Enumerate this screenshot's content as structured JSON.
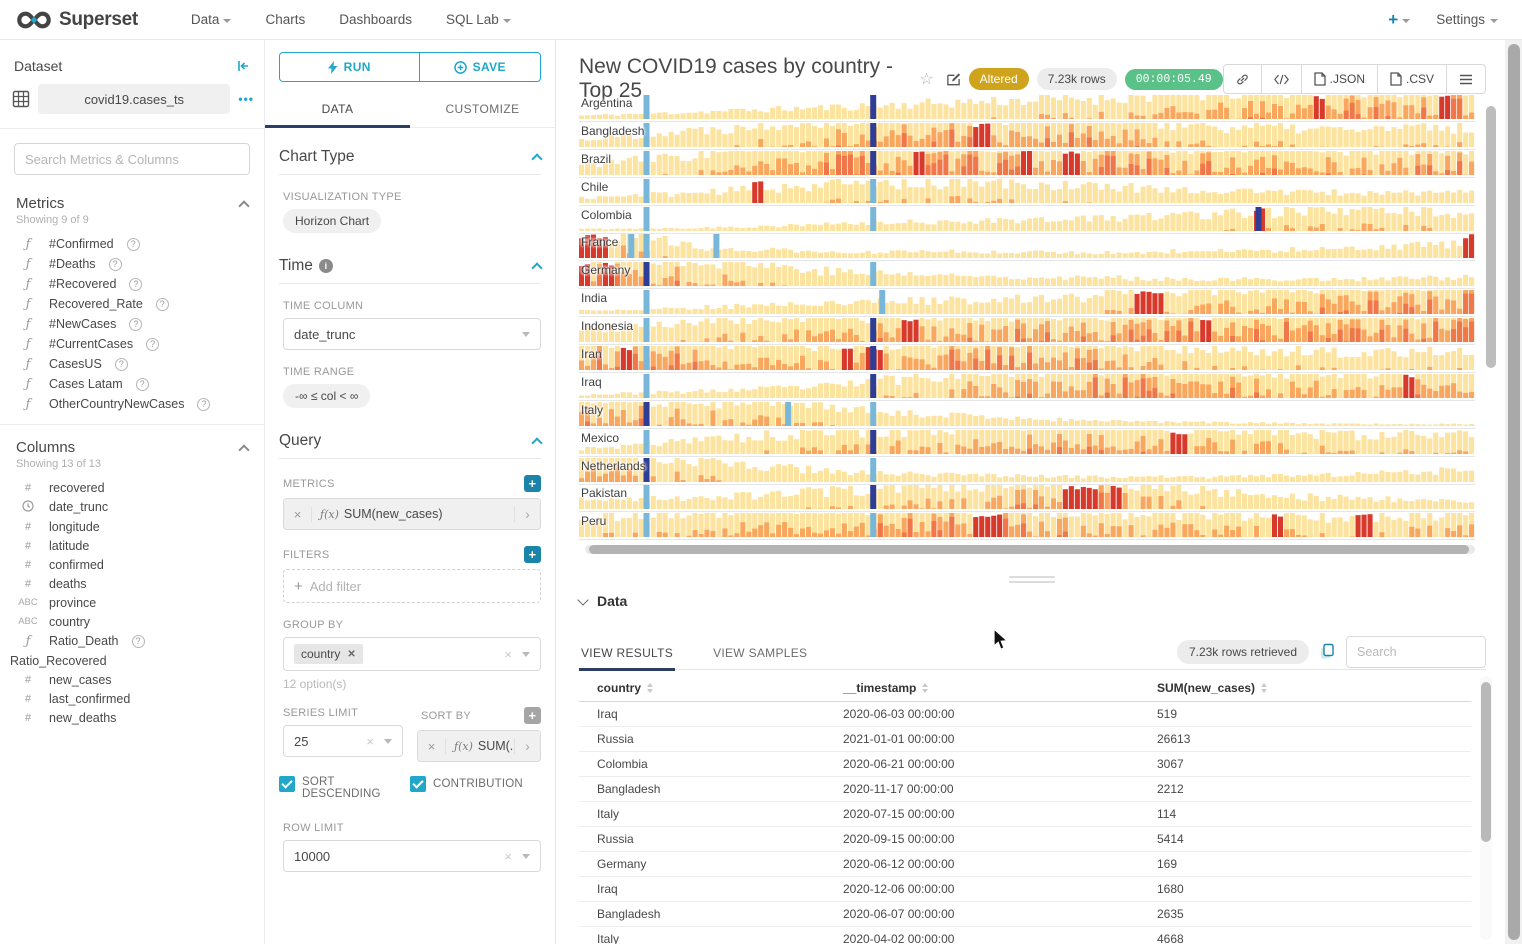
{
  "colors": {
    "accent_teal": "#20a7c9",
    "dark_teal": "#1a85a8",
    "tab_navy": "#2c3e63",
    "altered_gold": "#cfa31b",
    "timer_green": "#5ac189",
    "hz_pale": "#fde3a0",
    "hz_orange": "#f9a75e",
    "hz_deep": "#f0774a",
    "hz_red": "#d7392b",
    "hz_lightblue": "#79b7da",
    "hz_navy": "#2e3d95"
  },
  "navbar": {
    "brand": "Superset",
    "items": [
      {
        "label": "Data",
        "caret": true
      },
      {
        "label": "Charts",
        "caret": false
      },
      {
        "label": "Dashboards",
        "caret": false
      },
      {
        "label": "SQL Lab",
        "caret": true
      }
    ],
    "plus_label": "+",
    "settings_label": "Settings"
  },
  "dataset": {
    "title": "Dataset",
    "name": "covid19.cases_ts",
    "menu_dots": "•••",
    "search_placeholder": "Search Metrics & Columns",
    "metrics_title": "Metrics",
    "metrics_count": "Showing 9 of 9",
    "metrics": [
      {
        "label": "#Confirmed"
      },
      {
        "label": "#Deaths"
      },
      {
        "label": "#Recovered"
      },
      {
        "label": "Recovered_Rate"
      },
      {
        "label": "#NewCases"
      },
      {
        "label": "#CurrentCases"
      },
      {
        "label": "CasesUS"
      },
      {
        "label": "Cases Latam"
      },
      {
        "label": "OtherCountryNewCases"
      }
    ],
    "columns_title": "Columns",
    "columns_count": "Showing 13 of 13",
    "columns": [
      {
        "type": "num",
        "label": "recovered"
      },
      {
        "type": "time",
        "label": "date_trunc"
      },
      {
        "type": "num",
        "label": "longitude"
      },
      {
        "type": "num",
        "label": "latitude"
      },
      {
        "type": "num",
        "label": "confirmed"
      },
      {
        "type": "num",
        "label": "deaths"
      },
      {
        "type": "str",
        "label": "province"
      },
      {
        "type": "str",
        "label": "country"
      },
      {
        "type": "fn",
        "label": "Ratio_Death",
        "help": true
      },
      {
        "type": "none",
        "label": "Ratio_Recovered"
      },
      {
        "type": "num",
        "label": "new_cases"
      },
      {
        "type": "num",
        "label": "last_confirmed"
      },
      {
        "type": "num",
        "label": "new_deaths"
      }
    ]
  },
  "control": {
    "run_label": "RUN",
    "save_label": "SAVE",
    "tabs": [
      "DATA",
      "CUSTOMIZE"
    ],
    "chart_type": {
      "title": "Chart Type",
      "viz_label": "VISUALIZATION TYPE",
      "viz_value": "Horizon Chart"
    },
    "time": {
      "title": "Time",
      "column_label": "TIME COLUMN",
      "column_value": "date_trunc",
      "range_label": "TIME RANGE",
      "range_value": "-∞ ≤ col < ∞"
    },
    "query": {
      "title": "Query",
      "metrics_label": "METRICS",
      "metric_chip": "SUM(new_cases)",
      "fx": "ƒ(x)",
      "filters_label": "FILTERS",
      "add_filter": "Add filter",
      "group_by_label": "GROUP BY",
      "group_by_value": "country",
      "options_hint": "12 option(s)",
      "series_limit_label": "SERIES LIMIT",
      "series_limit_value": "25",
      "sort_by_label": "SORT BY",
      "sort_by_chip": "SUM(...",
      "sort_desc_label": "SORT DESCENDING",
      "contribution_label": "CONTRIBUTION",
      "row_limit_label": "ROW LIMIT",
      "row_limit_value": "10000"
    }
  },
  "header": {
    "title": "New COVID19 cases by country - Top 25",
    "altered": "Altered",
    "rows_badge": "7.23k rows",
    "timer": "00:00:05.49",
    "json_label": ".JSON",
    "csv_label": ".CSV"
  },
  "chart_data": {
    "type": "horizon",
    "title": "New COVID19 cases by country - Top 25",
    "metric": "SUM(new_cases)",
    "time_column": "date_trunc",
    "series_limit": 25,
    "visible_categories": [
      "Argentina",
      "Bangladesh",
      "Brazil",
      "Chile",
      "Colombia",
      "France",
      "Germany",
      "India",
      "Indonesia",
      "Iran",
      "Iraq",
      "Italy",
      "Mexico",
      "Netherlands",
      "Pakistan",
      "Peru"
    ],
    "series": [
      {
        "name": "Argentina",
        "seed": 11,
        "envelope": [
          0.1,
          0.22,
          0.35,
          0.5,
          0.62,
          0.78,
          0.95,
          1.0
        ],
        "reds": [
          0.83,
          0.97
        ],
        "markers": [
          {
            "p": 0.072,
            "c": "lightblue"
          },
          {
            "p": 0.325,
            "c": "navy"
          }
        ]
      },
      {
        "name": "Bangladesh",
        "seed": 22,
        "envelope": [
          0.22,
          0.52,
          0.9,
          1.0,
          0.92,
          0.62,
          0.52,
          0.58
        ],
        "reds": [
          0.45
        ],
        "markers": [
          {
            "p": 0.072,
            "c": "lightblue"
          },
          {
            "p": 0.325,
            "c": "navy"
          }
        ]
      },
      {
        "name": "Brazil",
        "seed": 33,
        "envelope": [
          0.3,
          0.62,
          1.0,
          1.0,
          0.98,
          0.9,
          0.82,
          0.92
        ],
        "reds": [
          0.38,
          0.5,
          0.55
        ],
        "markers": [
          {
            "p": 0.072,
            "c": "lightblue"
          },
          {
            "p": 0.325,
            "c": "navy"
          }
        ]
      },
      {
        "name": "Chile",
        "seed": 44,
        "envelope": [
          0.15,
          0.32,
          0.56,
          0.6,
          0.5,
          0.36,
          0.3,
          0.32
        ],
        "reds": [
          0.197
        ],
        "markers": [
          {
            "p": 0.072,
            "c": "lightblue"
          },
          {
            "p": 0.325,
            "c": "lightblue"
          }
        ]
      },
      {
        "name": "Colombia",
        "seed": 55,
        "envelope": [
          0.06,
          0.1,
          0.2,
          0.3,
          0.36,
          0.52,
          0.62,
          0.56
        ],
        "reds": [
          0.762
        ],
        "markers": [
          {
            "p": 0.072,
            "c": "lightblue"
          },
          {
            "p": 0.325,
            "c": "lightblue"
          },
          {
            "p": 0.755,
            "c": "navy"
          }
        ]
      },
      {
        "name": "France",
        "seed": 66,
        "envelope": [
          0.92,
          0.3,
          0.16,
          0.2,
          0.16,
          0.22,
          0.26,
          0.46
        ],
        "reds": [
          0.005,
          0.02,
          0.995
        ],
        "markers": [
          {
            "p": 0.055,
            "c": "lightblue"
          },
          {
            "p": 0.072,
            "c": "lightblue"
          },
          {
            "p": 0.15,
            "c": "lightblue"
          }
        ]
      },
      {
        "name": "Germany",
        "seed": 77,
        "envelope": [
          1.0,
          0.8,
          0.42,
          0.3,
          0.25,
          0.2,
          0.2,
          0.26
        ],
        "reds": [
          0.0,
          0.03
        ],
        "markers": [
          {
            "p": 0.072,
            "c": "navy"
          },
          {
            "p": 0.325,
            "c": "lightblue"
          }
        ]
      },
      {
        "name": "India",
        "seed": 88,
        "envelope": [
          0.1,
          0.2,
          0.32,
          0.42,
          0.52,
          0.72,
          0.9,
          1.0
        ],
        "reds": [
          0.63,
          0.645
        ],
        "markers": [
          {
            "p": 0.072,
            "c": "lightblue"
          },
          {
            "p": 0.335,
            "c": "lightblue"
          }
        ]
      },
      {
        "name": "Indonesia",
        "seed": 99,
        "envelope": [
          0.4,
          0.6,
          0.8,
          0.9,
          0.9,
          1.0,
          0.92,
          1.0
        ],
        "reds": [
          0.37,
          0.7
        ],
        "markers": [
          {
            "p": 0.072,
            "c": "lightblue"
          },
          {
            "p": 0.325,
            "c": "navy"
          }
        ]
      },
      {
        "name": "Iran",
        "seed": 12,
        "envelope": [
          1.0,
          0.9,
          0.82,
          1.0,
          0.9,
          0.62,
          0.52,
          0.62
        ],
        "reds": [
          0.05,
          0.3,
          0.33
        ],
        "markers": [
          {
            "p": 0.072,
            "c": "lightblue"
          },
          {
            "p": 0.325,
            "c": "navy"
          }
        ]
      },
      {
        "name": "Iraq",
        "seed": 23,
        "envelope": [
          0.1,
          0.2,
          0.36,
          0.8,
          1.0,
          0.9,
          0.82,
          1.0
        ],
        "reds": [
          0.93
        ],
        "markers": [
          {
            "p": 0.072,
            "c": "lightblue"
          },
          {
            "p": 0.325,
            "c": "navy"
          }
        ]
      },
      {
        "name": "Italy",
        "seed": 34,
        "envelope": [
          0.92,
          0.8,
          0.5,
          0.3,
          0.15,
          0.1,
          0.06,
          0.06
        ],
        "reds": [],
        "markers": [
          {
            "p": 0.072,
            "c": "navy"
          },
          {
            "p": 0.23,
            "c": "lightblue"
          },
          {
            "p": 0.325,
            "c": "lightblue"
          }
        ]
      },
      {
        "name": "Mexico",
        "seed": 45,
        "envelope": [
          0.15,
          0.42,
          0.7,
          0.8,
          0.9,
          0.8,
          0.62,
          0.52
        ],
        "reds": [
          0.67
        ],
        "markers": [
          {
            "p": 0.072,
            "c": "lightblue"
          },
          {
            "p": 0.325,
            "c": "navy"
          }
        ]
      },
      {
        "name": "Netherlands",
        "seed": 56,
        "envelope": [
          0.92,
          0.6,
          0.3,
          0.2,
          0.15,
          0.15,
          0.22,
          0.36
        ],
        "reds": [],
        "markers": [
          {
            "p": 0.072,
            "c": "navy"
          },
          {
            "p": 0.325,
            "c": "lightblue"
          }
        ]
      },
      {
        "name": "Pakistan",
        "seed": 67,
        "envelope": [
          0.26,
          0.36,
          0.52,
          0.72,
          1.0,
          0.5,
          0.32,
          0.26
        ],
        "reds": [
          0.55,
          0.57,
          0.6
        ],
        "markers": [
          {
            "p": 0.072,
            "c": "lightblue"
          },
          {
            "p": 0.325,
            "c": "navy"
          }
        ]
      },
      {
        "name": "Peru",
        "seed": 78,
        "envelope": [
          0.5,
          0.7,
          0.9,
          1.0,
          0.82,
          0.7,
          0.62,
          0.72
        ],
        "reds": [
          0.45,
          0.465,
          0.78,
          0.88
        ],
        "markers": [
          {
            "p": 0.072,
            "c": "lightblue"
          },
          {
            "p": 0.325,
            "c": "lightblue"
          }
        ]
      }
    ]
  },
  "results": {
    "section_title": "Data",
    "tabs": [
      "VIEW RESULTS",
      "VIEW SAMPLES"
    ],
    "rows_badge": "7.23k rows retrieved",
    "search_placeholder": "Search",
    "table": {
      "columns": [
        "country",
        "__timestamp",
        "SUM(new_cases)"
      ],
      "rows": [
        [
          "Iraq",
          "2020-06-03 00:00:00",
          "519"
        ],
        [
          "Russia",
          "2021-01-01 00:00:00",
          "26613"
        ],
        [
          "Colombia",
          "2020-06-21 00:00:00",
          "3067"
        ],
        [
          "Bangladesh",
          "2020-11-17 00:00:00",
          "2212"
        ],
        [
          "Italy",
          "2020-07-15 00:00:00",
          "114"
        ],
        [
          "Russia",
          "2020-09-15 00:00:00",
          "5414"
        ],
        [
          "Germany",
          "2020-06-12 00:00:00",
          "169"
        ],
        [
          "Iraq",
          "2020-12-06 00:00:00",
          "1680"
        ],
        [
          "Bangladesh",
          "2020-06-07 00:00:00",
          "2635"
        ],
        [
          "Italy",
          "2020-04-02 00:00:00",
          "4668"
        ]
      ]
    }
  }
}
